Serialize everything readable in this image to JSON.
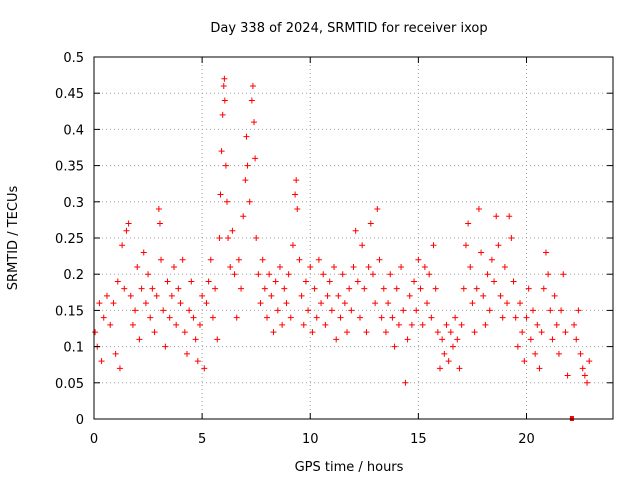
{
  "chart_data": {
    "type": "scatter",
    "title": "Day 338 of 2024, SRMTID for receiver ixop",
    "xlabel": "GPS time / hours",
    "ylabel": "SRMTID / TECUs",
    "xlim": [
      0,
      24
    ],
    "ylim": [
      0,
      0.5
    ],
    "xticks": [
      0,
      5,
      10,
      15,
      20
    ],
    "yticks": [
      0,
      0.05,
      0.1,
      0.15,
      0.2,
      0.25,
      0.3,
      0.35,
      0.4,
      0.45,
      0.5
    ],
    "xtick_labels": [
      "0",
      "5",
      "10",
      "15",
      "20"
    ],
    "ytick_labels": [
      "0",
      "0.05",
      "0.1",
      "0.15",
      "0.2",
      "0.25",
      "0.3",
      "0.35",
      "0.4",
      "0.45",
      "0.5"
    ],
    "grid": true,
    "marker": "+",
    "color": "#ff0000",
    "series": [
      {
        "name": "SRMTID",
        "points": [
          [
            0.05,
            0.12
          ],
          [
            0.15,
            0.1
          ],
          [
            0.25,
            0.16
          ],
          [
            0.35,
            0.08
          ],
          [
            0.45,
            0.14
          ],
          [
            0.6,
            0.17
          ],
          [
            0.75,
            0.13
          ],
          [
            0.9,
            0.16
          ],
          [
            1.0,
            0.09
          ],
          [
            1.1,
            0.19
          ],
          [
            1.2,
            0.07
          ],
          [
            1.3,
            0.24
          ],
          [
            1.4,
            0.18
          ],
          [
            1.5,
            0.26
          ],
          [
            1.6,
            0.27
          ],
          [
            1.7,
            0.17
          ],
          [
            1.8,
            0.13
          ],
          [
            1.9,
            0.15
          ],
          [
            2.0,
            0.21
          ],
          [
            2.1,
            0.11
          ],
          [
            2.2,
            0.18
          ],
          [
            2.3,
            0.23
          ],
          [
            2.4,
            0.16
          ],
          [
            2.5,
            0.2
          ],
          [
            2.6,
            0.14
          ],
          [
            2.7,
            0.18
          ],
          [
            2.8,
            0.12
          ],
          [
            2.9,
            0.17
          ],
          [
            3.0,
            0.29
          ],
          [
            3.05,
            0.27
          ],
          [
            3.1,
            0.22
          ],
          [
            3.2,
            0.15
          ],
          [
            3.3,
            0.1
          ],
          [
            3.4,
            0.19
          ],
          [
            3.5,
            0.14
          ],
          [
            3.6,
            0.17
          ],
          [
            3.7,
            0.21
          ],
          [
            3.8,
            0.13
          ],
          [
            3.9,
            0.18
          ],
          [
            4.0,
            0.16
          ],
          [
            4.1,
            0.22
          ],
          [
            4.2,
            0.12
          ],
          [
            4.3,
            0.09
          ],
          [
            4.4,
            0.15
          ],
          [
            4.5,
            0.19
          ],
          [
            4.6,
            0.14
          ],
          [
            4.7,
            0.11
          ],
          [
            4.8,
            0.08
          ],
          [
            4.9,
            0.13
          ],
          [
            5.0,
            0.17
          ],
          [
            5.1,
            0.07
          ],
          [
            5.2,
            0.16
          ],
          [
            5.3,
            0.19
          ],
          [
            5.4,
            0.22
          ],
          [
            5.5,
            0.14
          ],
          [
            5.6,
            0.18
          ],
          [
            5.7,
            0.11
          ],
          [
            5.8,
            0.25
          ],
          [
            5.85,
            0.31
          ],
          [
            5.9,
            0.37
          ],
          [
            5.95,
            0.42
          ],
          [
            6.0,
            0.46
          ],
          [
            6.03,
            0.47
          ],
          [
            6.05,
            0.44
          ],
          [
            6.1,
            0.35
          ],
          [
            6.15,
            0.3
          ],
          [
            6.2,
            0.25
          ],
          [
            6.3,
            0.21
          ],
          [
            6.4,
            0.26
          ],
          [
            6.5,
            0.2
          ],
          [
            6.6,
            0.14
          ],
          [
            6.7,
            0.22
          ],
          [
            6.8,
            0.18
          ],
          [
            6.9,
            0.28
          ],
          [
            7.0,
            0.33
          ],
          [
            7.05,
            0.39
          ],
          [
            7.1,
            0.35
          ],
          [
            7.2,
            0.3
          ],
          [
            7.3,
            0.44
          ],
          [
            7.35,
            0.46
          ],
          [
            7.4,
            0.41
          ],
          [
            7.45,
            0.36
          ],
          [
            7.5,
            0.25
          ],
          [
            7.6,
            0.2
          ],
          [
            7.7,
            0.16
          ],
          [
            7.8,
            0.22
          ],
          [
            7.9,
            0.18
          ],
          [
            8.0,
            0.14
          ],
          [
            8.1,
            0.2
          ],
          [
            8.2,
            0.17
          ],
          [
            8.3,
            0.12
          ],
          [
            8.4,
            0.19
          ],
          [
            8.5,
            0.15
          ],
          [
            8.6,
            0.21
          ],
          [
            8.7,
            0.13
          ],
          [
            8.8,
            0.18
          ],
          [
            8.9,
            0.16
          ],
          [
            9.0,
            0.2
          ],
          [
            9.1,
            0.14
          ],
          [
            9.2,
            0.24
          ],
          [
            9.3,
            0.31
          ],
          [
            9.35,
            0.33
          ],
          [
            9.4,
            0.29
          ],
          [
            9.5,
            0.22
          ],
          [
            9.6,
            0.17
          ],
          [
            9.7,
            0.13
          ],
          [
            9.8,
            0.19
          ],
          [
            9.9,
            0.15
          ],
          [
            10.0,
            0.21
          ],
          [
            10.1,
            0.12
          ],
          [
            10.2,
            0.18
          ],
          [
            10.3,
            0.14
          ],
          [
            10.4,
            0.22
          ],
          [
            10.5,
            0.16
          ],
          [
            10.6,
            0.2
          ],
          [
            10.7,
            0.13
          ],
          [
            10.8,
            0.17
          ],
          [
            10.9,
            0.19
          ],
          [
            11.0,
            0.15
          ],
          [
            11.1,
            0.21
          ],
          [
            11.2,
            0.11
          ],
          [
            11.3,
            0.17
          ],
          [
            11.4,
            0.14
          ],
          [
            11.5,
            0.2
          ],
          [
            11.6,
            0.16
          ],
          [
            11.7,
            0.12
          ],
          [
            11.8,
            0.18
          ],
          [
            11.9,
            0.15
          ],
          [
            12.0,
            0.21
          ],
          [
            12.1,
            0.26
          ],
          [
            12.2,
            0.19
          ],
          [
            12.3,
            0.14
          ],
          [
            12.4,
            0.24
          ],
          [
            12.5,
            0.18
          ],
          [
            12.6,
            0.12
          ],
          [
            12.7,
            0.21
          ],
          [
            12.8,
            0.27
          ],
          [
            12.9,
            0.2
          ],
          [
            13.0,
            0.16
          ],
          [
            13.1,
            0.29
          ],
          [
            13.2,
            0.22
          ],
          [
            13.3,
            0.14
          ],
          [
            13.4,
            0.18
          ],
          [
            13.5,
            0.12
          ],
          [
            13.6,
            0.16
          ],
          [
            13.7,
            0.2
          ],
          [
            13.8,
            0.14
          ],
          [
            13.9,
            0.1
          ],
          [
            14.0,
            0.18
          ],
          [
            14.1,
            0.13
          ],
          [
            14.2,
            0.21
          ],
          [
            14.3,
            0.15
          ],
          [
            14.4,
            0.05
          ],
          [
            14.5,
            0.11
          ],
          [
            14.6,
            0.17
          ],
          [
            14.7,
            0.13
          ],
          [
            14.8,
            0.19
          ],
          [
            14.9,
            0.15
          ],
          [
            15.0,
            0.22
          ],
          [
            15.1,
            0.18
          ],
          [
            15.2,
            0.13
          ],
          [
            15.3,
            0.21
          ],
          [
            15.4,
            0.16
          ],
          [
            15.5,
            0.2
          ],
          [
            15.6,
            0.14
          ],
          [
            15.7,
            0.24
          ],
          [
            15.8,
            0.18
          ],
          [
            15.9,
            0.12
          ],
          [
            16.0,
            0.07
          ],
          [
            16.1,
            0.11
          ],
          [
            16.2,
            0.09
          ],
          [
            16.3,
            0.13
          ],
          [
            16.4,
            0.08
          ],
          [
            16.5,
            0.12
          ],
          [
            16.6,
            0.1
          ],
          [
            16.7,
            0.14
          ],
          [
            16.8,
            0.11
          ],
          [
            16.9,
            0.07
          ],
          [
            17.0,
            0.13
          ],
          [
            17.1,
            0.18
          ],
          [
            17.2,
            0.24
          ],
          [
            17.3,
            0.27
          ],
          [
            17.4,
            0.21
          ],
          [
            17.5,
            0.16
          ],
          [
            17.6,
            0.12
          ],
          [
            17.7,
            0.18
          ],
          [
            17.8,
            0.29
          ],
          [
            17.9,
            0.23
          ],
          [
            18.0,
            0.17
          ],
          [
            18.1,
            0.13
          ],
          [
            18.2,
            0.2
          ],
          [
            18.3,
            0.15
          ],
          [
            18.4,
            0.22
          ],
          [
            18.5,
            0.19
          ],
          [
            18.6,
            0.28
          ],
          [
            18.7,
            0.24
          ],
          [
            18.8,
            0.17
          ],
          [
            18.9,
            0.14
          ],
          [
            19.0,
            0.21
          ],
          [
            19.1,
            0.16
          ],
          [
            19.2,
            0.28
          ],
          [
            19.3,
            0.25
          ],
          [
            19.4,
            0.19
          ],
          [
            19.5,
            0.14
          ],
          [
            19.6,
            0.1
          ],
          [
            19.7,
            0.16
          ],
          [
            19.8,
            0.12
          ],
          [
            19.9,
            0.08
          ],
          [
            20.0,
            0.14
          ],
          [
            20.1,
            0.18
          ],
          [
            20.2,
            0.11
          ],
          [
            20.3,
            0.15
          ],
          [
            20.4,
            0.09
          ],
          [
            20.5,
            0.13
          ],
          [
            20.6,
            0.07
          ],
          [
            20.7,
            0.12
          ],
          [
            20.8,
            0.18
          ],
          [
            20.9,
            0.23
          ],
          [
            21.0,
            0.2
          ],
          [
            21.1,
            0.15
          ],
          [
            21.2,
            0.11
          ],
          [
            21.3,
            0.17
          ],
          [
            21.4,
            0.13
          ],
          [
            21.5,
            0.09
          ],
          [
            21.6,
            0.15
          ],
          [
            21.7,
            0.2
          ],
          [
            21.8,
            0.12
          ],
          [
            21.9,
            0.06
          ],
          [
            22.2,
            0.13
          ],
          [
            22.3,
            0.11
          ],
          [
            22.4,
            0.15
          ],
          [
            22.5,
            0.09
          ],
          [
            22.6,
            0.07
          ],
          [
            22.7,
            0.06
          ],
          [
            22.8,
            0.05
          ],
          [
            22.9,
            0.08
          ]
        ]
      }
    ],
    "outlier": [
      22.1,
      0.0
    ]
  }
}
